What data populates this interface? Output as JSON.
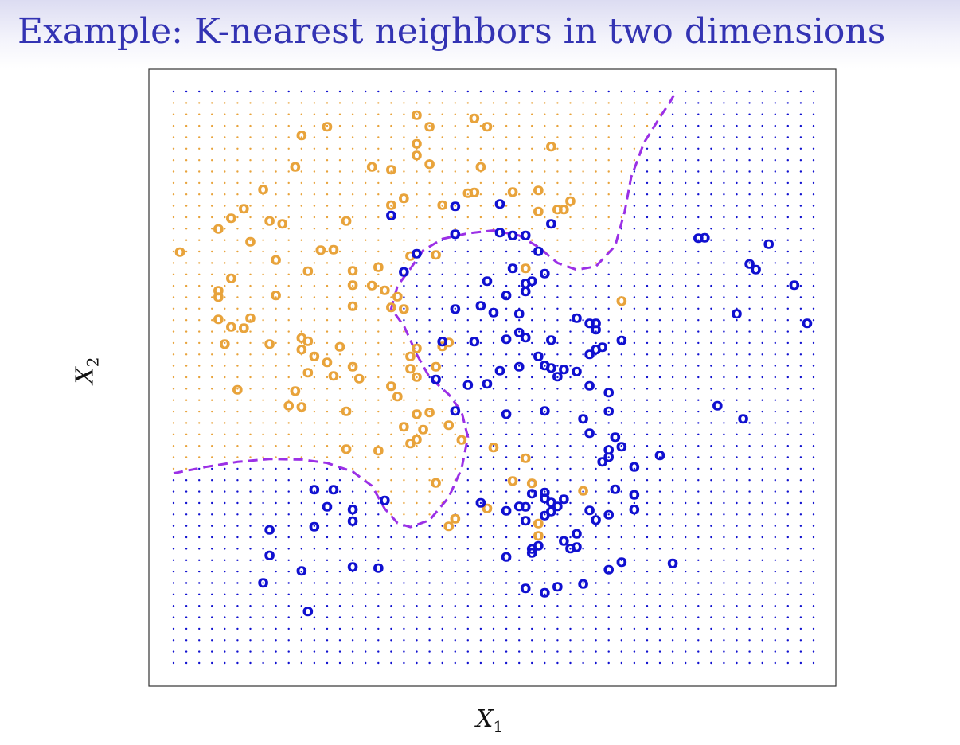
{
  "slide": {
    "title": "Example: K-nearest neighbors in two dimensions"
  },
  "chart_data": {
    "type": "scatter",
    "title": "",
    "xlabel": {
      "main": "X",
      "sub": "1"
    },
    "ylabel": {
      "main": "X",
      "sub": "2"
    },
    "xlim": [
      0,
      1
    ],
    "ylim": [
      0,
      1
    ],
    "grid": false,
    "legend": "none",
    "marker": "o",
    "colors": {
      "orange": "#e8a33b",
      "blue": "#1010d0",
      "boundary": "#9b30e6",
      "frame": "#333333"
    },
    "background_grid": {
      "nx": 50,
      "ny": 50,
      "note_shown": "dotted colored lattice indicating predicted class region"
    },
    "decision_boundary": [
      [
        0.0,
        0.332
      ],
      [
        0.05,
        0.343
      ],
      [
        0.1,
        0.352
      ],
      [
        0.15,
        0.357
      ],
      [
        0.2,
        0.356
      ],
      [
        0.24,
        0.35
      ],
      [
        0.28,
        0.335
      ],
      [
        0.31,
        0.31
      ],
      [
        0.33,
        0.27
      ],
      [
        0.35,
        0.245
      ],
      [
        0.37,
        0.238
      ],
      [
        0.4,
        0.25
      ],
      [
        0.43,
        0.29
      ],
      [
        0.45,
        0.34
      ],
      [
        0.46,
        0.395
      ],
      [
        0.45,
        0.44
      ],
      [
        0.43,
        0.47
      ],
      [
        0.4,
        0.5
      ],
      [
        0.38,
        0.54
      ],
      [
        0.36,
        0.59
      ],
      [
        0.34,
        0.62
      ],
      [
        0.35,
        0.66
      ],
      [
        0.37,
        0.69
      ],
      [
        0.39,
        0.722
      ],
      [
        0.42,
        0.742
      ],
      [
        0.46,
        0.752
      ],
      [
        0.5,
        0.757
      ],
      [
        0.54,
        0.748
      ],
      [
        0.57,
        0.728
      ],
      [
        0.6,
        0.7
      ],
      [
        0.63,
        0.688
      ],
      [
        0.66,
        0.694
      ],
      [
        0.69,
        0.73
      ],
      [
        0.705,
        0.79
      ],
      [
        0.715,
        0.85
      ],
      [
        0.735,
        0.91
      ],
      [
        0.76,
        0.955
      ],
      [
        0.775,
        0.98
      ],
      [
        0.785,
        1.0
      ]
    ],
    "series": [
      {
        "name": "",
        "color": "orange",
        "points": [
          [
            0.38,
            0.96
          ],
          [
            0.4,
            0.94
          ],
          [
            0.47,
            0.955
          ],
          [
            0.49,
            0.94
          ],
          [
            0.24,
            0.94
          ],
          [
            0.2,
            0.925
          ],
          [
            0.38,
            0.91
          ],
          [
            0.38,
            0.89
          ],
          [
            0.4,
            0.875
          ],
          [
            0.59,
            0.905
          ],
          [
            0.19,
            0.87
          ],
          [
            0.31,
            0.87
          ],
          [
            0.34,
            0.865
          ],
          [
            0.48,
            0.87
          ],
          [
            0.14,
            0.83
          ],
          [
            0.47,
            0.825
          ],
          [
            0.53,
            0.826
          ],
          [
            0.36,
            0.815
          ],
          [
            0.57,
            0.829
          ],
          [
            0.34,
            0.803
          ],
          [
            0.42,
            0.803
          ],
          [
            0.46,
            0.824
          ],
          [
            0.11,
            0.797
          ],
          [
            0.09,
            0.78
          ],
          [
            0.07,
            0.761
          ],
          [
            0.15,
            0.775
          ],
          [
            0.17,
            0.77
          ],
          [
            0.27,
            0.775
          ],
          [
            0.62,
            0.81
          ],
          [
            0.61,
            0.795
          ],
          [
            0.6,
            0.795
          ],
          [
            0.57,
            0.792
          ],
          [
            0.12,
            0.739
          ],
          [
            0.01,
            0.721
          ],
          [
            0.23,
            0.724
          ],
          [
            0.25,
            0.725
          ],
          [
            0.37,
            0.714
          ],
          [
            0.16,
            0.707
          ],
          [
            0.21,
            0.687
          ],
          [
            0.28,
            0.688
          ],
          [
            0.32,
            0.694
          ],
          [
            0.41,
            0.716
          ],
          [
            0.09,
            0.675
          ],
          [
            0.07,
            0.653
          ],
          [
            0.07,
            0.642
          ],
          [
            0.16,
            0.645
          ],
          [
            0.28,
            0.663
          ],
          [
            0.31,
            0.662
          ],
          [
            0.33,
            0.654
          ],
          [
            0.35,
            0.643
          ],
          [
            0.28,
            0.626
          ],
          [
            0.34,
            0.624
          ],
          [
            0.07,
            0.603
          ],
          [
            0.09,
            0.59
          ],
          [
            0.11,
            0.588
          ],
          [
            0.12,
            0.605
          ],
          [
            0.36,
            0.621
          ],
          [
            0.08,
            0.56
          ],
          [
            0.15,
            0.56
          ],
          [
            0.2,
            0.57
          ],
          [
            0.21,
            0.565
          ],
          [
            0.2,
            0.55
          ],
          [
            0.26,
            0.555
          ],
          [
            0.37,
            0.538
          ],
          [
            0.38,
            0.552
          ],
          [
            0.42,
            0.556
          ],
          [
            0.43,
            0.563
          ],
          [
            0.41,
            0.52
          ],
          [
            0.37,
            0.517
          ],
          [
            0.22,
            0.538
          ],
          [
            0.24,
            0.528
          ],
          [
            0.28,
            0.52
          ],
          [
            0.21,
            0.51
          ],
          [
            0.25,
            0.504
          ],
          [
            0.38,
            0.502
          ],
          [
            0.34,
            0.486
          ],
          [
            0.35,
            0.468
          ],
          [
            0.1,
            0.48
          ],
          [
            0.19,
            0.478
          ],
          [
            0.29,
            0.499
          ],
          [
            0.18,
            0.452
          ],
          [
            0.2,
            0.45
          ],
          [
            0.27,
            0.442
          ],
          [
            0.38,
            0.437
          ],
          [
            0.4,
            0.44
          ],
          [
            0.36,
            0.415
          ],
          [
            0.39,
            0.41
          ],
          [
            0.43,
            0.418
          ],
          [
            0.27,
            0.376
          ],
          [
            0.32,
            0.373
          ],
          [
            0.37,
            0.386
          ],
          [
            0.38,
            0.393
          ],
          [
            0.45,
            0.392
          ],
          [
            0.5,
            0.379
          ],
          [
            0.55,
            0.36
          ],
          [
            0.41,
            0.317
          ],
          [
            0.64,
            0.303
          ],
          [
            0.56,
            0.316
          ],
          [
            0.53,
            0.32
          ],
          [
            0.49,
            0.272
          ],
          [
            0.44,
            0.254
          ],
          [
            0.43,
            0.241
          ],
          [
            0.57,
            0.246
          ],
          [
            0.57,
            0.224
          ],
          [
            0.7,
            0.635
          ],
          [
            0.55,
            0.692
          ]
        ]
      },
      {
        "name": "",
        "color": "blue",
        "points": [
          [
            0.44,
            0.801
          ],
          [
            0.51,
            0.805
          ],
          [
            0.34,
            0.785
          ],
          [
            0.59,
            0.77
          ],
          [
            0.44,
            0.752
          ],
          [
            0.51,
            0.755
          ],
          [
            0.53,
            0.75
          ],
          [
            0.55,
            0.75
          ],
          [
            0.57,
            0.722
          ],
          [
            0.38,
            0.718
          ],
          [
            0.49,
            0.67
          ],
          [
            0.55,
            0.666
          ],
          [
            0.36,
            0.686
          ],
          [
            0.53,
            0.692
          ],
          [
            0.58,
            0.683
          ],
          [
            0.56,
            0.67
          ],
          [
            0.52,
            0.645
          ],
          [
            0.44,
            0.621
          ],
          [
            0.5,
            0.615
          ],
          [
            0.54,
            0.613
          ],
          [
            0.63,
            0.605
          ],
          [
            0.65,
            0.596
          ],
          [
            0.66,
            0.596
          ],
          [
            0.66,
            0.585
          ],
          [
            0.82,
            0.745
          ],
          [
            0.83,
            0.746
          ],
          [
            0.93,
            0.735
          ],
          [
            0.9,
            0.7
          ],
          [
            0.91,
            0.69
          ],
          [
            0.97,
            0.663
          ],
          [
            0.88,
            0.613
          ],
          [
            0.99,
            0.596
          ],
          [
            0.55,
            0.652
          ],
          [
            0.48,
            0.627
          ],
          [
            0.47,
            0.564
          ],
          [
            0.42,
            0.564
          ],
          [
            0.52,
            0.568
          ],
          [
            0.55,
            0.571
          ],
          [
            0.59,
            0.567
          ],
          [
            0.54,
            0.58
          ],
          [
            0.7,
            0.566
          ],
          [
            0.67,
            0.554
          ],
          [
            0.65,
            0.542
          ],
          [
            0.66,
            0.55
          ],
          [
            0.57,
            0.538
          ],
          [
            0.54,
            0.52
          ],
          [
            0.58,
            0.522
          ],
          [
            0.59,
            0.518
          ],
          [
            0.61,
            0.515
          ],
          [
            0.63,
            0.512
          ],
          [
            0.6,
            0.503
          ],
          [
            0.65,
            0.487
          ],
          [
            0.68,
            0.475
          ],
          [
            0.41,
            0.498
          ],
          [
            0.46,
            0.488
          ],
          [
            0.49,
            0.49
          ],
          [
            0.51,
            0.513
          ],
          [
            0.44,
            0.443
          ],
          [
            0.52,
            0.437
          ],
          [
            0.58,
            0.443
          ],
          [
            0.68,
            0.442
          ],
          [
            0.64,
            0.429
          ],
          [
            0.65,
            0.404
          ],
          [
            0.69,
            0.397
          ],
          [
            0.7,
            0.38
          ],
          [
            0.68,
            0.375
          ],
          [
            0.72,
            0.345
          ],
          [
            0.76,
            0.365
          ],
          [
            0.85,
            0.452
          ],
          [
            0.89,
            0.429
          ],
          [
            0.67,
            0.354
          ],
          [
            0.68,
            0.362
          ],
          [
            0.52,
            0.268
          ],
          [
            0.55,
            0.275
          ],
          [
            0.54,
            0.276
          ],
          [
            0.48,
            0.282
          ],
          [
            0.59,
            0.283
          ],
          [
            0.6,
            0.276
          ],
          [
            0.58,
            0.29
          ],
          [
            0.61,
            0.288
          ],
          [
            0.56,
            0.298
          ],
          [
            0.58,
            0.3
          ],
          [
            0.69,
            0.306
          ],
          [
            0.72,
            0.296
          ],
          [
            0.68,
            0.261
          ],
          [
            0.66,
            0.252
          ],
          [
            0.55,
            0.251
          ],
          [
            0.58,
            0.26
          ],
          [
            0.59,
            0.267
          ],
          [
            0.65,
            0.269
          ],
          [
            0.24,
            0.275
          ],
          [
            0.33,
            0.286
          ],
          [
            0.72,
            0.27
          ],
          [
            0.28,
            0.27
          ],
          [
            0.22,
            0.305
          ],
          [
            0.25,
            0.305
          ],
          [
            0.15,
            0.235
          ],
          [
            0.22,
            0.24
          ],
          [
            0.28,
            0.25
          ],
          [
            0.2,
            0.163
          ],
          [
            0.28,
            0.17
          ],
          [
            0.32,
            0.168
          ],
          [
            0.15,
            0.19
          ],
          [
            0.14,
            0.142
          ],
          [
            0.21,
            0.092
          ],
          [
            0.52,
            0.187
          ],
          [
            0.56,
            0.201
          ],
          [
            0.57,
            0.207
          ],
          [
            0.56,
            0.194
          ],
          [
            0.62,
            0.202
          ],
          [
            0.63,
            0.205
          ],
          [
            0.63,
            0.228
          ],
          [
            0.61,
            0.215
          ],
          [
            0.68,
            0.165
          ],
          [
            0.7,
            0.178
          ],
          [
            0.55,
            0.132
          ],
          [
            0.58,
            0.125
          ],
          [
            0.6,
            0.135
          ],
          [
            0.64,
            0.14
          ],
          [
            0.78,
            0.176
          ]
        ]
      }
    ]
  }
}
